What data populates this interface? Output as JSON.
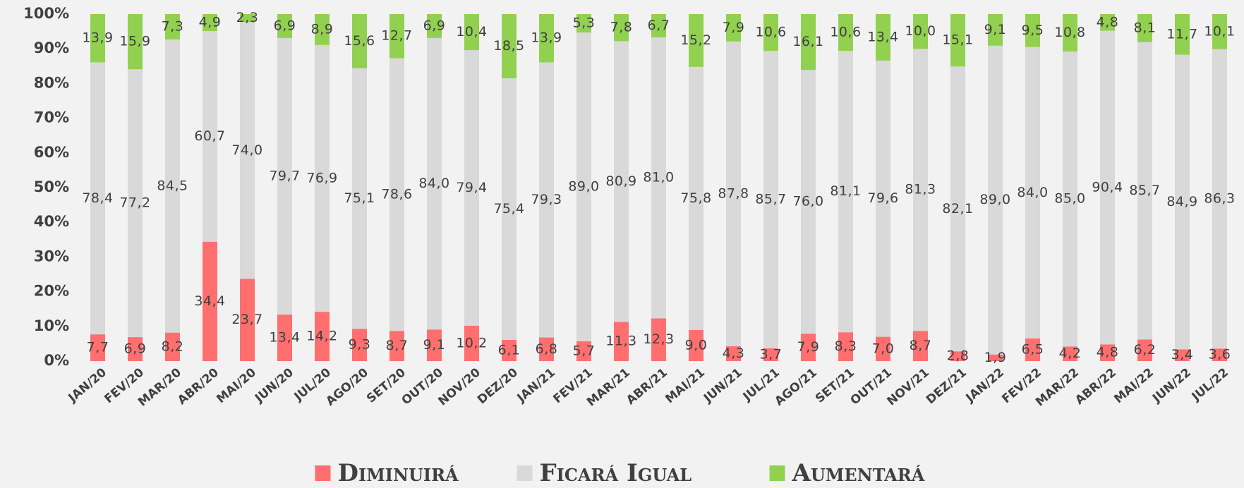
{
  "chart_data": {
    "type": "stacked_bar",
    "categories": [
      "JAN/20",
      "FEV/20",
      "MAR/20",
      "ABR/20",
      "MAI/20",
      "JUN/20",
      "JUL/20",
      "AGO/20",
      "SET/20",
      "OUT/20",
      "NOV/20",
      "DEZ/20",
      "JAN/21",
      "FEV/21",
      "MAR/21",
      "ABR/21",
      "MAI/21",
      "JUN/21",
      "JUL/21",
      "AGO/21",
      "SET/21",
      "OUT/21",
      "NOV/21",
      "DEZ/21",
      "JAN/22",
      "FEV/22",
      "MAR/22",
      "ABR/22",
      "MAI/22",
      "JUN/22",
      "JUL/22"
    ],
    "series": [
      {
        "name": "Diminuirá",
        "color": "#ff6f6f",
        "values": [
          7.7,
          6.9,
          8.2,
          34.4,
          23.7,
          13.4,
          14.2,
          9.3,
          8.7,
          9.1,
          10.2,
          6.1,
          6.8,
          5.7,
          11.3,
          12.3,
          9.0,
          4.3,
          3.7,
          7.9,
          8.3,
          7.0,
          8.7,
          2.8,
          1.9,
          6.5,
          4.2,
          4.8,
          6.2,
          3.4,
          3.6
        ],
        "value_labels": [
          "7,7",
          "6,9",
          "8,2",
          "34,4",
          "23,7",
          "13,4",
          "14,2",
          "9,3",
          "8,7",
          "9,1",
          "10,2",
          "6,1",
          "6,8",
          "5,7",
          "11,3",
          "12,3",
          "9,0",
          "4,3",
          "3,7",
          "7,9",
          "8,3",
          "7,0",
          "8,7",
          "2,8",
          "1,9",
          "6,5",
          "4,2",
          "4,8",
          "6,2",
          "3,4",
          "3,6"
        ]
      },
      {
        "name": "Ficará Igual",
        "color": "#d9d9d9",
        "values": [
          78.4,
          77.2,
          84.5,
          60.7,
          74.0,
          79.7,
          76.9,
          75.1,
          78.6,
          84.0,
          79.4,
          75.4,
          79.3,
          89.0,
          80.9,
          81.0,
          75.8,
          87.8,
          85.7,
          76.0,
          81.1,
          79.6,
          81.3,
          82.1,
          89.0,
          84.0,
          85.0,
          90.4,
          85.7,
          84.9,
          86.3
        ],
        "value_labels": [
          "78,4",
          "77,2",
          "84,5",
          "60,7",
          "74,0",
          "79,7",
          "76,9",
          "75,1",
          "78,6",
          "84,0",
          "79,4",
          "75,4",
          "79,3",
          "89,0",
          "80,9",
          "81,0",
          "75,8",
          "87,8",
          "85,7",
          "76,0",
          "81,1",
          "79,6",
          "81,3",
          "82,1",
          "89,0",
          "84,0",
          "85,0",
          "90,4",
          "85,7",
          "84,9",
          "86,3"
        ]
      },
      {
        "name": "Aumentará",
        "color": "#92d050",
        "values": [
          13.9,
          15.9,
          7.3,
          4.9,
          2.3,
          6.9,
          8.9,
          15.6,
          12.7,
          6.9,
          10.4,
          18.5,
          13.9,
          5.3,
          7.8,
          6.7,
          15.2,
          7.9,
          10.6,
          16.1,
          10.6,
          13.4,
          10.0,
          15.1,
          9.1,
          9.5,
          10.8,
          4.8,
          8.1,
          11.7,
          10.1
        ],
        "value_labels": [
          "13,9",
          "15,9",
          "7,3",
          "4,9",
          "2,3",
          "6,9",
          "8,9",
          "15,6",
          "12,7",
          "6,9",
          "10,4",
          "18,5",
          "13,9",
          "5,3",
          "7,8",
          "6,7",
          "15,2",
          "7,9",
          "10,6",
          "16,1",
          "10,6",
          "13,4",
          "10,0",
          "15,1",
          "9,1",
          "9,5",
          "10,8",
          "4,8",
          "8,1",
          "11,7",
          "10,1"
        ]
      }
    ],
    "ylim": [
      0,
      100
    ],
    "yticks": [
      {
        "value": 0,
        "label": "0%"
      },
      {
        "value": 10,
        "label": "10%"
      },
      {
        "value": 20,
        "label": "20%"
      },
      {
        "value": 30,
        "label": "30%"
      },
      {
        "value": 40,
        "label": "40%"
      },
      {
        "value": 50,
        "label": "50%"
      },
      {
        "value": 60,
        "label": "60%"
      },
      {
        "value": 70,
        "label": "70%"
      },
      {
        "value": 80,
        "label": "80%"
      },
      {
        "value": 90,
        "label": "90%"
      },
      {
        "value": 100,
        "label": "100%"
      }
    ],
    "grid": false,
    "legend": "bottom"
  }
}
